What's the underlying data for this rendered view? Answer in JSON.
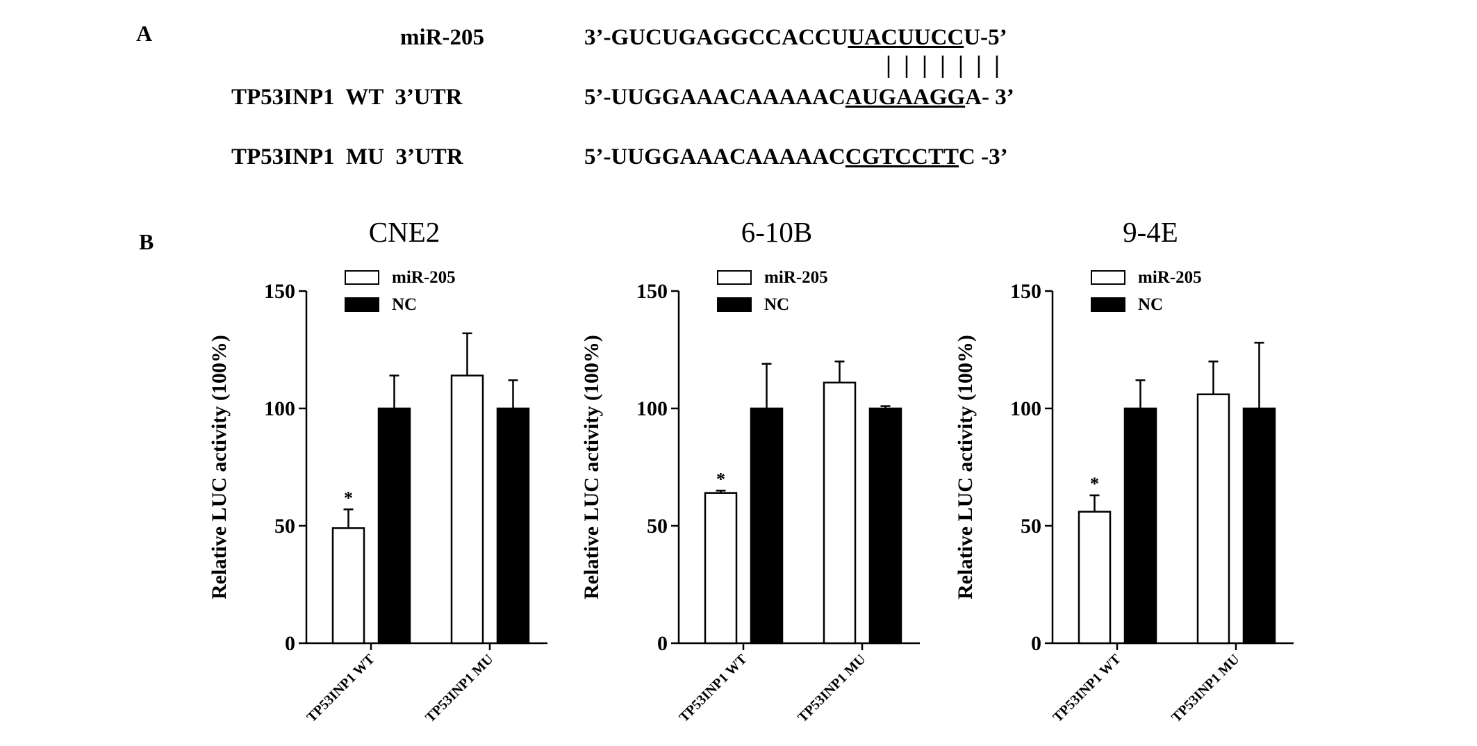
{
  "panel_A": {
    "label": "A",
    "rows": [
      {
        "name": "miR-205",
        "sequence": [
          "3’-GUCUGAGGCCACCU",
          "UACUUCC",
          "U-5’"
        ]
      },
      {
        "name": "TP53INP1  WT  3’UTR",
        "sequence": [
          "5’-UUGGAAACAAAAAC",
          "AUGAAGG",
          "A- 3’"
        ]
      },
      {
        "name": "TP53INP1  MU  3’UTR",
        "sequence": [
          "5’-UUGGAAACAAAAAC",
          "CGTCCTT",
          "C -3’"
        ]
      }
    ]
  },
  "panel_B": {
    "label": "B"
  },
  "chart_data": [
    {
      "type": "bar",
      "title": "CNE2",
      "ylabel": "Relative LUC activity (100%)",
      "categories": [
        "TP53INP1 WT",
        "TP53INP1 MU"
      ],
      "series": [
        {
          "name": "miR-205",
          "color": "#ffffff",
          "values": [
            49,
            114
          ],
          "errors": [
            8,
            18
          ],
          "significance": [
            "*",
            null
          ]
        },
        {
          "name": "NC",
          "color": "#000000",
          "values": [
            100,
            100
          ],
          "errors": [
            14,
            12
          ]
        }
      ],
      "ylim": [
        0,
        150
      ],
      "yticks": [
        0,
        50,
        100,
        150
      ]
    },
    {
      "type": "bar",
      "title": "6-10B",
      "ylabel": "Relative LUC activity (100%)",
      "categories": [
        "TP53INP1 WT",
        "TP53INP1 MU"
      ],
      "series": [
        {
          "name": "miR-205",
          "color": "#ffffff",
          "values": [
            64,
            111
          ],
          "errors": [
            1,
            9
          ],
          "significance": [
            "*",
            null
          ]
        },
        {
          "name": "NC",
          "color": "#000000",
          "values": [
            100,
            100
          ],
          "errors": [
            19,
            1
          ]
        }
      ],
      "ylim": [
        0,
        150
      ],
      "yticks": [
        0,
        50,
        100,
        150
      ]
    },
    {
      "type": "bar",
      "title": "9-4E",
      "ylabel": "Relative LUC activity (100%)",
      "categories": [
        "TP53INP1 WT",
        "TP53INP1 MU"
      ],
      "series": [
        {
          "name": "miR-205",
          "color": "#ffffff",
          "values": [
            56,
            106
          ],
          "errors": [
            7,
            14
          ],
          "significance": [
            "*",
            null
          ]
        },
        {
          "name": "NC",
          "color": "#000000",
          "values": [
            100,
            100
          ],
          "errors": [
            12,
            28
          ]
        }
      ],
      "ylim": [
        0,
        150
      ],
      "yticks": [
        0,
        50,
        100,
        150
      ]
    }
  ]
}
